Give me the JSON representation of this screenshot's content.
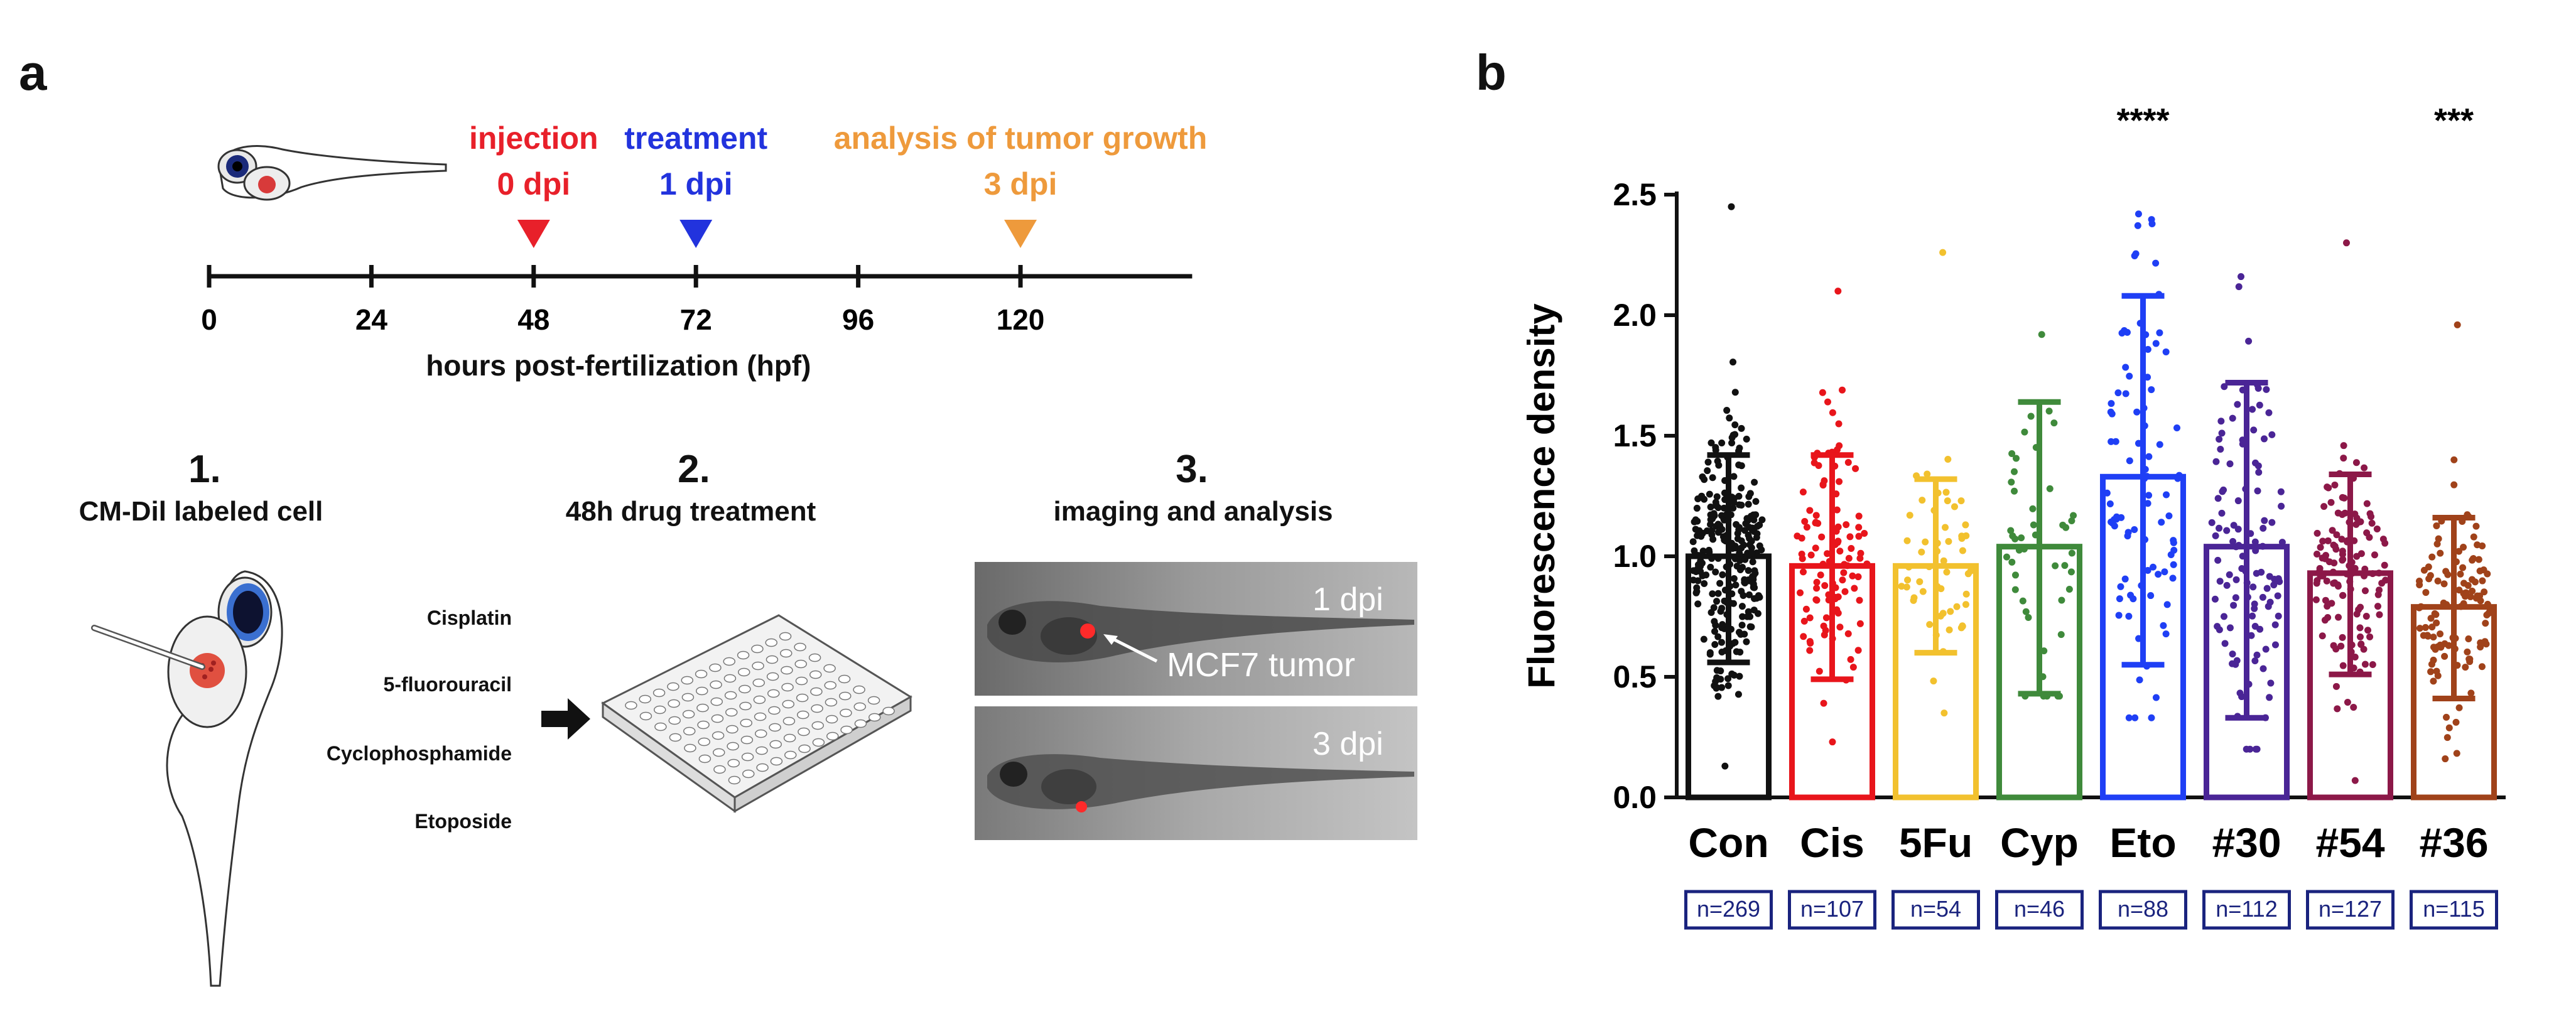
{
  "panel_a": {
    "label": "a",
    "timeline": {
      "events": [
        {
          "name": "injection",
          "dpi": "0 dpi",
          "color": "#e8202a",
          "hour": 48
        },
        {
          "name": "treatment",
          "dpi": "1 dpi",
          "color": "#2233dd",
          "hour": 72
        },
        {
          "name": "analysis of tumor growth",
          "dpi": "3 dpi",
          "color": "#ee9a3c",
          "hour": 120
        }
      ],
      "ticks": [
        "0",
        "24",
        "48",
        "72",
        "96",
        "120"
      ],
      "tick_hours": [
        0,
        24,
        48,
        72,
        96,
        120
      ],
      "max_hour": 144,
      "axis_label": "hours post-fertilization (hpf)"
    },
    "steps": [
      {
        "number": "1.",
        "title": "CM-Dil labeled cell"
      },
      {
        "number": "2.",
        "title": "48h drug treatment"
      },
      {
        "number": "3.",
        "title": "imaging and analysis"
      }
    ],
    "drugs": [
      "Cisplatin",
      "5-fluorouracil",
      "Cyclophosphamide",
      "Etoposide"
    ],
    "images": [
      {
        "label": "1 dpi",
        "annotation": "MCF7 tumor"
      },
      {
        "label": "3 dpi"
      }
    ]
  },
  "panel_b": {
    "label": "b"
  },
  "chart_data": {
    "type": "bar",
    "title": "",
    "xlabel": "",
    "ylabel": "Fluorescence density",
    "ylim": [
      0,
      2.5
    ],
    "yticks": [
      "0.0",
      "0.5",
      "1.0",
      "1.5",
      "2.0",
      "2.5"
    ],
    "ytick_values": [
      0,
      0.5,
      1.0,
      1.5,
      2.0,
      2.5
    ],
    "categories": [
      "Con",
      "Cis",
      "5Fu",
      "Cyp",
      "Eto",
      "#30",
      "#54",
      "#36"
    ],
    "values": [
      1.0,
      0.96,
      0.96,
      1.04,
      1.33,
      1.04,
      0.93,
      0.79
    ],
    "error_low": [
      0.56,
      0.49,
      0.6,
      0.43,
      0.55,
      0.33,
      0.51,
      0.41
    ],
    "error_high": [
      1.42,
      1.42,
      1.32,
      1.64,
      2.08,
      1.72,
      1.34,
      1.16
    ],
    "point_min": [
      0.13,
      0.23,
      0.35,
      0.42,
      0.33,
      0.2,
      0.07,
      0.16
    ],
    "point_max": [
      2.45,
      2.1,
      2.26,
      1.92,
      2.42,
      2.16,
      2.3,
      1.96
    ],
    "n_labels": [
      "n=269",
      "n=107",
      "n=54",
      "n=46",
      "n=88",
      "n=112",
      "n=127",
      "n=115"
    ],
    "n": [
      269,
      107,
      54,
      46,
      88,
      112,
      127,
      115
    ],
    "significance": [
      "",
      "",
      "",
      "",
      "****",
      "",
      "",
      "***"
    ],
    "colors": [
      "#111111",
      "#e8151b",
      "#f2c12e",
      "#3f8a3b",
      "#1f3ff5",
      "#4a2596",
      "#8c1848",
      "#a0421a"
    ]
  }
}
